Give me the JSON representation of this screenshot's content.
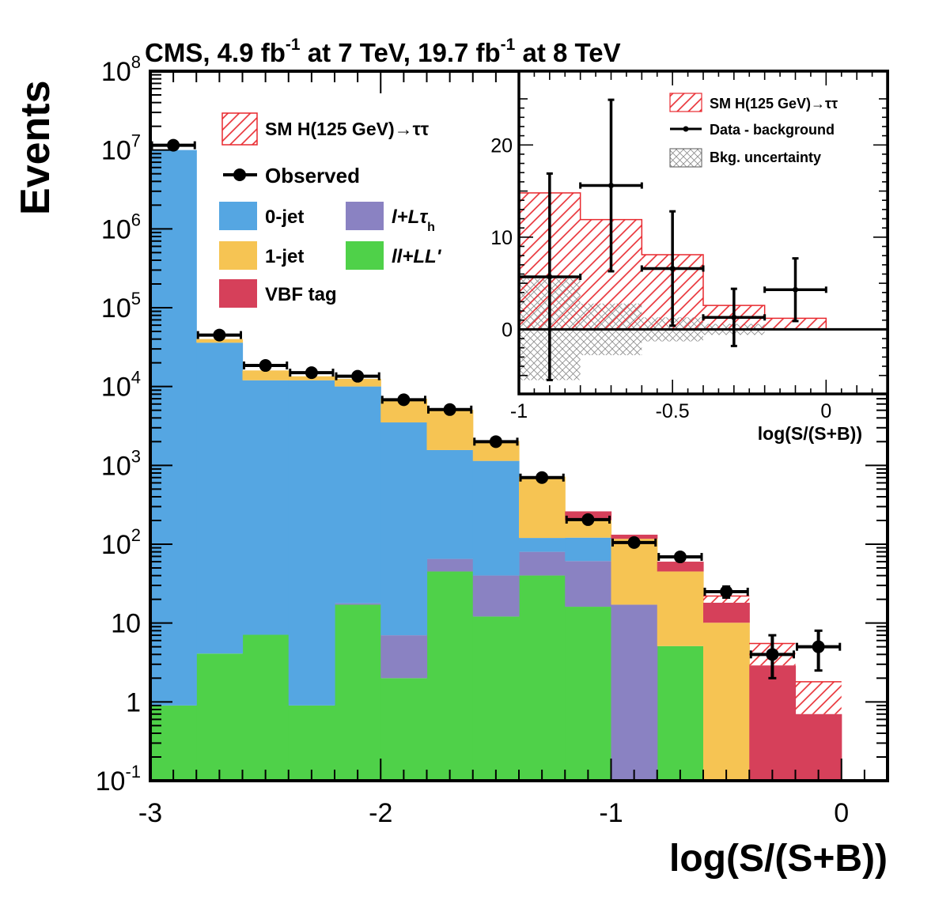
{
  "chart_data": [
    {
      "type": "bar",
      "subtype": "stacked-histogram",
      "title": "CMS, 4.9 fb-1 at 7 TeV, 19.7 fb-1 at 8 TeV",
      "title_parts": {
        "a": "CMS, 4.9 fb",
        "a_sup": "-1",
        "b": " at 7 TeV, 19.7 fb",
        "b_sup": "-1",
        "c": " at 8 TeV"
      },
      "xlabel": "log(S/(S+B))",
      "ylabel": "Events",
      "xlim": [
        -3,
        0.2
      ],
      "ylim": [
        0.1,
        100000000
      ],
      "yscale": "log",
      "x_ticks": [
        {
          "v": -3,
          "label": "-3"
        },
        {
          "v": -2,
          "label": "-2"
        },
        {
          "v": -1,
          "label": "-1"
        },
        {
          "v": 0,
          "label": "0"
        }
      ],
      "y_ticks": [
        {
          "v": 0.1,
          "base": "10",
          "sup": "-1"
        },
        {
          "v": 1,
          "base": "1",
          "sup": ""
        },
        {
          "v": 10,
          "base": "10",
          "sup": ""
        },
        {
          "v": 100,
          "base": "10",
          "sup": "2"
        },
        {
          "v": 1000,
          "base": "10",
          "sup": "3"
        },
        {
          "v": 10000,
          "base": "10",
          "sup": "4"
        },
        {
          "v": 100000,
          "base": "10",
          "sup": "5"
        },
        {
          "v": 1000000,
          "base": "10",
          "sup": "6"
        },
        {
          "v": 10000000,
          "base": "10",
          "sup": "7"
        },
        {
          "v": 100000000,
          "base": "10",
          "sup": "8"
        }
      ],
      "bin_edges": [
        -3.0,
        -2.8,
        -2.6,
        -2.4,
        -2.2,
        -2.0,
        -1.8,
        -1.6,
        -1.4,
        -1.2,
        -1.0,
        -0.8,
        -0.6,
        -0.4,
        -0.2,
        0.0
      ],
      "series": [
        {
          "name": "ll+LL'",
          "color": "#4fd149",
          "values": [
            0.8,
            4,
            7,
            0.8,
            17,
            1.9,
            45,
            12,
            40,
            16,
            0,
            5,
            0,
            0,
            0
          ]
        },
        {
          "name": "l+Lτh",
          "color": "#8a82c2",
          "values": [
            0,
            0,
            0,
            0,
            0.7,
            5,
            20,
            28,
            40,
            45,
            17,
            0,
            0,
            0,
            0
          ]
        },
        {
          "name": "0-jet",
          "color": "#55a6e2",
          "values": [
            10000000,
            36000,
            12000,
            12000,
            10000,
            3500,
            1500,
            1100,
            40,
            60,
            0,
            0,
            0,
            0,
            0
          ]
        },
        {
          "name": "1-jet",
          "color": "#f6c453",
          "values": [
            0,
            4000,
            4000,
            1500,
            2500,
            3500,
            3500,
            900,
            600,
            80,
            100,
            40,
            10,
            0,
            0
          ]
        },
        {
          "name": "VBF tag",
          "color": "#d6405a",
          "values": [
            0,
            0,
            0,
            0,
            0,
            0,
            0,
            0,
            0,
            60,
            15,
            15,
            8,
            2.8,
            0.6
          ]
        }
      ],
      "signal": {
        "name": "SM H(125 GeV)→ττ",
        "color": "#e8292f",
        "totals": [
          10000000,
          40000,
          16000,
          13500,
          12500,
          7000,
          5000,
          2000,
          680,
          210,
          115,
          55,
          22,
          5.5,
          1.8
        ]
      },
      "observed": {
        "name": "Observed",
        "x": [
          -2.9,
          -2.7,
          -2.5,
          -2.3,
          -2.1,
          -1.9,
          -1.7,
          -1.5,
          -1.3,
          -1.1,
          -0.9,
          -0.7,
          -0.5,
          -0.3,
          -0.1
        ],
        "y": [
          11500000,
          45000,
          18500,
          15000,
          13500,
          6800,
          5100,
          2000,
          700,
          205,
          105,
          69,
          25,
          4,
          5
        ],
        "err_low": [
          0,
          0,
          0,
          0,
          0,
          0,
          0,
          0,
          0,
          0,
          0,
          0,
          4,
          2,
          2.5
        ],
        "err_high": [
          0,
          0,
          0,
          0,
          0,
          0,
          0,
          0,
          0,
          0,
          0,
          0,
          4,
          3,
          3
        ]
      },
      "legend": {
        "position": "top-left",
        "signal_label": "SM H(125 GeV)→ττ",
        "observed_label": "Observed",
        "zerojet_label": "0-jet",
        "onejet_label": "1-jet",
        "vbf_label": "VBF tag",
        "ltau_main": "l+Lτ",
        "ltau_sub": "h",
        "ll_label": "ll+LL'"
      }
    },
    {
      "type": "bar",
      "subtype": "inset-histogram",
      "xlabel": "log(S/(S+B))",
      "ylabel": "",
      "xlim": [
        -1,
        0.2
      ],
      "ylim": [
        -7,
        28
      ],
      "x_ticks": [
        {
          "v": -1,
          "label": "-1"
        },
        {
          "v": -0.5,
          "label": "-0.5"
        },
        {
          "v": 0,
          "label": "0"
        }
      ],
      "y_ticks": [
        {
          "v": 0,
          "label": "0"
        },
        {
          "v": 10,
          "label": "10"
        },
        {
          "v": 20,
          "label": "20"
        }
      ],
      "bin_edges": [
        -1.0,
        -0.8,
        -0.6,
        -0.4,
        -0.2,
        0.0
      ],
      "signal": {
        "name": "SM H(125 GeV)→ττ",
        "color": "#e8292f",
        "values": [
          14.8,
          11.9,
          8.1,
          2.6,
          1.2
        ]
      },
      "bkg_uncertainty": {
        "name": "Bkg. uncertainty",
        "low": [
          -5.5,
          -2.8,
          -1.3,
          -0.6,
          0
        ],
        "high": [
          5.5,
          2.8,
          1.3,
          0.6,
          0
        ]
      },
      "data_minus_bkg": {
        "name": "Data - background",
        "x": [
          -0.9,
          -0.7,
          -0.5,
          -0.3,
          -0.1
        ],
        "y": [
          5.7,
          15.6,
          6.6,
          1.3,
          4.3
        ],
        "y_err": [
          11.2,
          9.3,
          6.2,
          3.1,
          3.4
        ],
        "x_halfwidth": 0.1
      },
      "legend": {
        "position": "top-right",
        "signal_label": "SM H(125 GeV)→ττ",
        "data_label": "Data - background",
        "bkg_label": "Bkg. uncertainty"
      }
    }
  ]
}
